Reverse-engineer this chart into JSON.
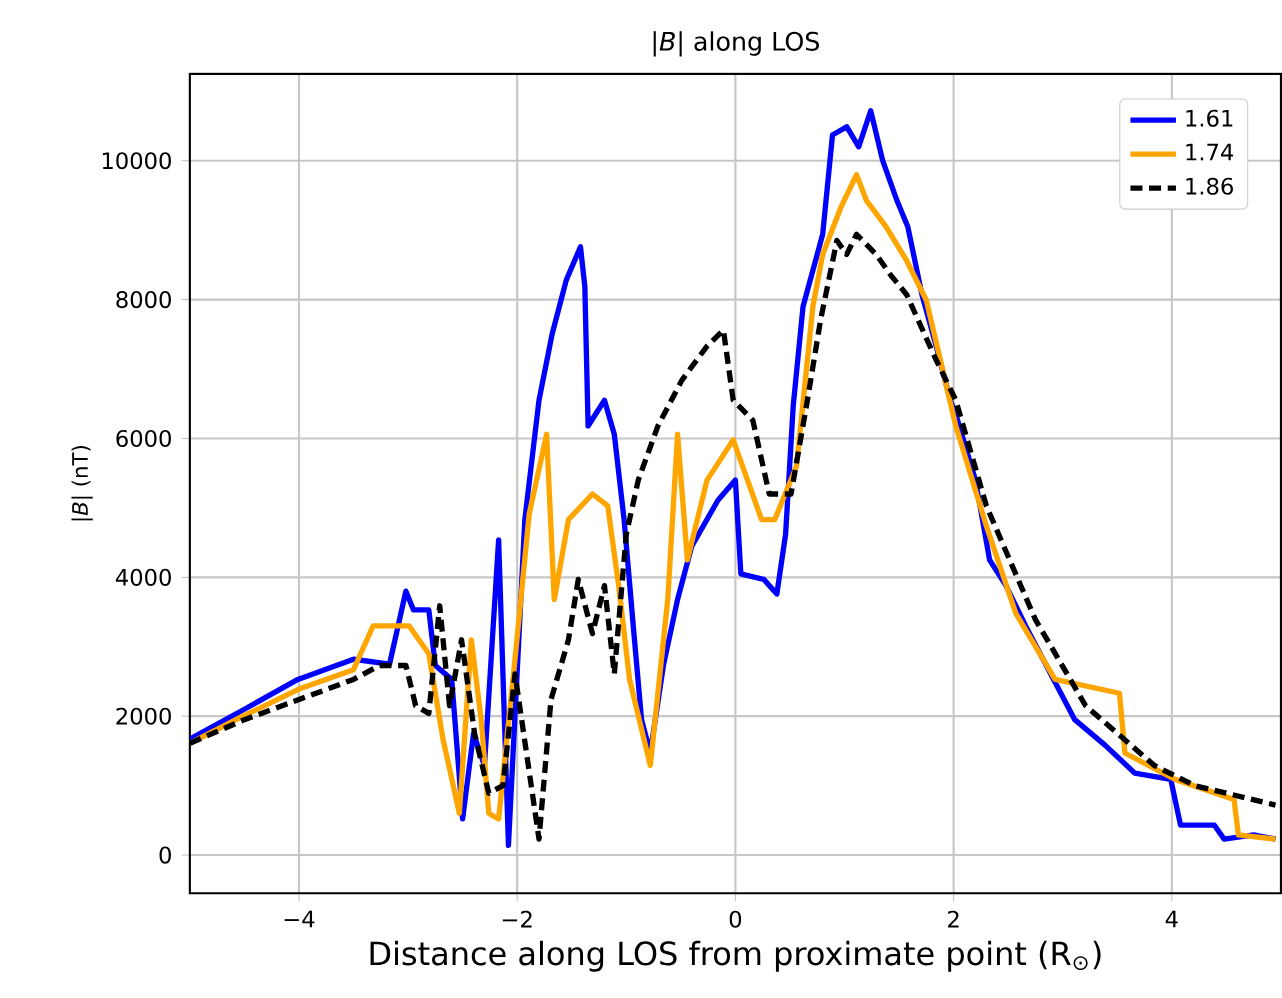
{
  "chart_data": {
    "type": "line",
    "title": "|*B*| along LOS",
    "xlabel": "Distance along LOS from proximate point (R$_{⊙}$)",
    "ylabel": "|*B*| (nT)",
    "xlim": [
      -5,
      5
    ],
    "ylim": [
      -550,
      11250
    ],
    "xticks": [
      {
        "value": -4,
        "label": "−4"
      },
      {
        "value": -2,
        "label": "−2"
      },
      0,
      2,
      4
    ],
    "yticks": [
      0,
      2000,
      4000,
      6000,
      8000,
      10000
    ],
    "grid": true,
    "legend": "top right",
    "series": [
      {
        "name": "1.61",
        "color": "#0000ff",
        "line_style": "solid",
        "x": [
          -5.0,
          -4.5,
          -4.01,
          -3.5,
          -3.17,
          -3.02,
          -2.95,
          -2.81,
          -2.75,
          -2.6,
          -2.5,
          -2.4,
          -2.3,
          -2.17,
          -2.08,
          -1.93,
          -1.8,
          -1.68,
          -1.55,
          -1.42,
          -1.38,
          -1.35,
          -1.2,
          -1.11,
          -1.02,
          -0.93,
          -0.86,
          -0.78,
          -0.66,
          -0.53,
          -0.4,
          -0.16,
          0,
          0.05,
          0.26,
          0.38,
          0.46,
          0.53,
          0.62,
          0.8,
          0.89,
          1.02,
          1.13,
          1.24,
          1.35,
          1.48,
          1.58,
          1.71,
          1.84,
          1.97,
          2.02,
          2.2,
          2.33,
          2.48,
          2.66,
          3.11,
          3.39,
          3.66,
          3.99,
          4.08,
          4.39,
          4.48,
          4.75,
          4.95
        ],
        "values": [
          1670,
          2100,
          2530,
          2820,
          2750,
          3800,
          3530,
          3530,
          2730,
          2530,
          520,
          1750,
          1290,
          4540,
          140,
          4830,
          6550,
          7500,
          8280,
          8760,
          8190,
          6180,
          6550,
          6060,
          4830,
          3190,
          1950,
          1470,
          2730,
          3680,
          4450,
          5110,
          5400,
          4050,
          3970,
          3760,
          4620,
          6470,
          7900,
          8940,
          10370,
          10490,
          10200,
          10720,
          10000,
          9430,
          9050,
          8070,
          7330,
          6550,
          6350,
          5400,
          4250,
          3880,
          3300,
          1950,
          1580,
          1180,
          1090,
          430,
          430,
          230,
          290,
          230
        ]
      },
      {
        "name": "1.74",
        "color": "#ffa500",
        "line_style": "solid",
        "x": [
          -5.0,
          -4.5,
          -4.0,
          -3.5,
          -3.32,
          -2.99,
          -2.81,
          -2.68,
          -2.53,
          -2.42,
          -2.33,
          -2.26,
          -2.17,
          -2.02,
          -1.89,
          -1.73,
          -1.66,
          -1.53,
          -1.31,
          -1.17,
          -1.07,
          -0.97,
          -0.78,
          -0.62,
          -0.53,
          -0.44,
          -0.26,
          -0.02,
          0.24,
          0.36,
          0.56,
          0.71,
          0.8,
          0.97,
          1.11,
          1.2,
          1.38,
          1.57,
          1.75,
          2.02,
          2.3,
          2.57,
          2.93,
          3.52,
          3.57,
          4.03,
          4.57,
          4.61,
          4.95
        ],
        "values": [
          1610,
          2010,
          2390,
          2670,
          3300,
          3300,
          2900,
          1670,
          600,
          3100,
          1950,
          600,
          520,
          2820,
          4910,
          6060,
          3680,
          4830,
          5200,
          5030,
          3880,
          2530,
          1290,
          3680,
          6060,
          4250,
          5400,
          5980,
          4830,
          4830,
          5600,
          7900,
          8650,
          9340,
          9800,
          9430,
          9050,
          8560,
          7990,
          6180,
          4740,
          3480,
          2530,
          2330,
          1470,
          1090,
          800,
          290,
          230
        ]
      },
      {
        "name": "1.86",
        "color": "#000000",
        "line_style": "dashed",
        "x": [
          -5.0,
          -4.5,
          -4.0,
          -3.5,
          -3.26,
          -3.02,
          -2.93,
          -2.81,
          -2.71,
          -2.62,
          -2.51,
          -2.39,
          -2.26,
          -2.13,
          -2.02,
          -1.8,
          -1.69,
          -1.53,
          -1.44,
          -1.31,
          -1.2,
          -1.11,
          -1.0,
          -0.89,
          -0.71,
          -0.49,
          -0.26,
          -0.11,
          -0.02,
          0.16,
          0.31,
          0.51,
          0.66,
          0.78,
          0.93,
          1.02,
          1.11,
          1.29,
          1.42,
          1.57,
          1.84,
          2.02,
          2.3,
          2.75,
          3.21,
          3.84,
          4.21,
          4.95
        ],
        "values": [
          1610,
          1950,
          2240,
          2530,
          2730,
          2730,
          2150,
          2040,
          3590,
          2150,
          3100,
          1750,
          890,
          1000,
          2610,
          230,
          2240,
          3100,
          3970,
          3190,
          3880,
          2610,
          4620,
          5400,
          6180,
          6840,
          7330,
          7560,
          6550,
          6260,
          5200,
          5200,
          6550,
          7700,
          8850,
          8650,
          8940,
          8650,
          8360,
          8070,
          7130,
          6550,
          5030,
          3390,
          2150,
          1290,
          1000,
          720
        ]
      }
    ]
  }
}
